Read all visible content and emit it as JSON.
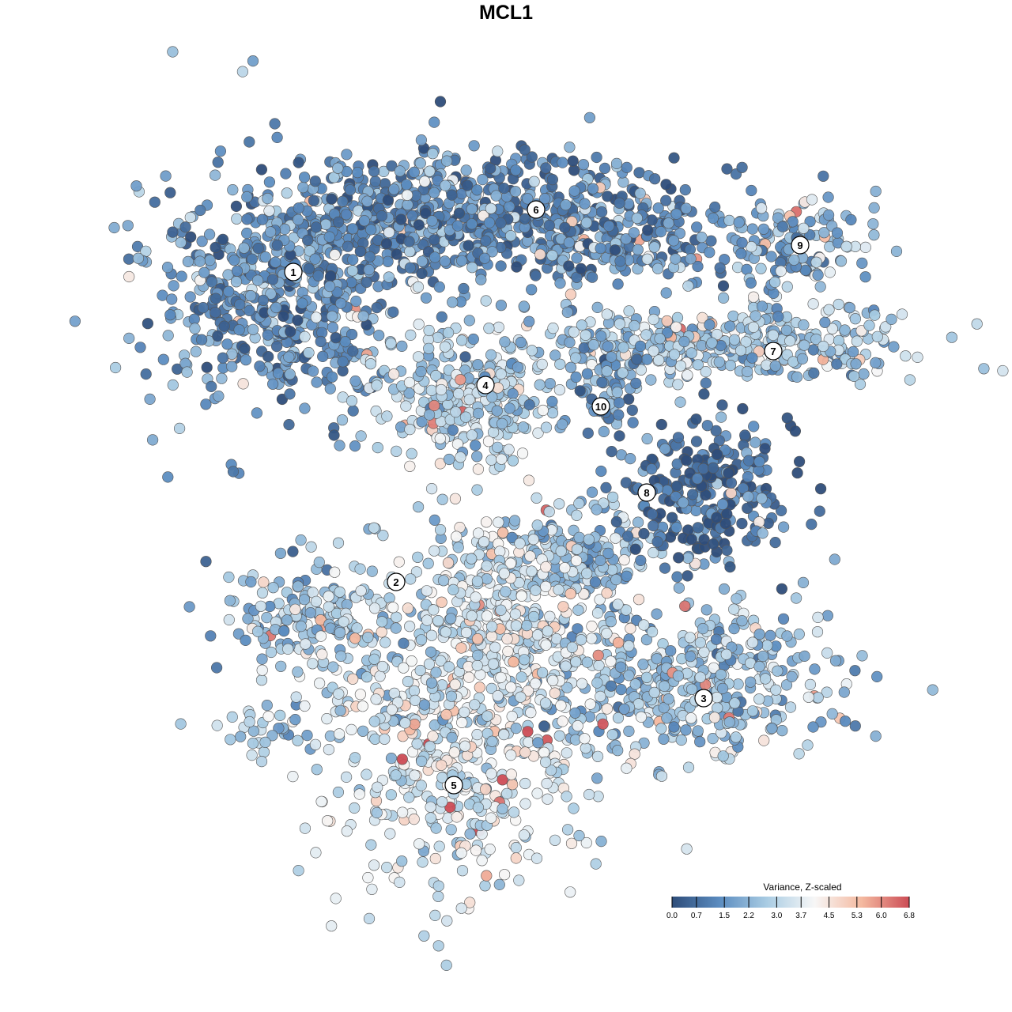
{
  "chart_data": {
    "type": "scatter",
    "title": "MCL1",
    "xlabel": "",
    "ylabel": "",
    "grid": false,
    "legend_position": "bottom-right",
    "colorbar": {
      "title": "Variance, Z-scaled",
      "min": 0.0,
      "max": 6.8,
      "ticks": [
        "0.0",
        "0.7",
        "1.5",
        "2.2",
        "3.0",
        "3.7",
        "4.5",
        "5.3",
        "6.0",
        "6.8"
      ],
      "colors": [
        "#2e4d7a",
        "#5b8cc0",
        "#a9cce3",
        "#f7f7f7",
        "#f4b9a0",
        "#cc4c55"
      ]
    },
    "clusters": [
      {
        "label": "1",
        "value": 1.4
      },
      {
        "label": "2",
        "value": 2.3
      },
      {
        "label": "3",
        "value": 2.4
      },
      {
        "label": "4",
        "value": 2.9
      },
      {
        "label": "5",
        "value": 3.4
      },
      {
        "label": "6",
        "value": 1.3
      },
      {
        "label": "7",
        "value": 2.6
      },
      {
        "label": "8",
        "value": 0.6
      },
      {
        "label": "9",
        "value": 1.9
      },
      {
        "label": "10",
        "value": 1.6
      }
    ]
  }
}
